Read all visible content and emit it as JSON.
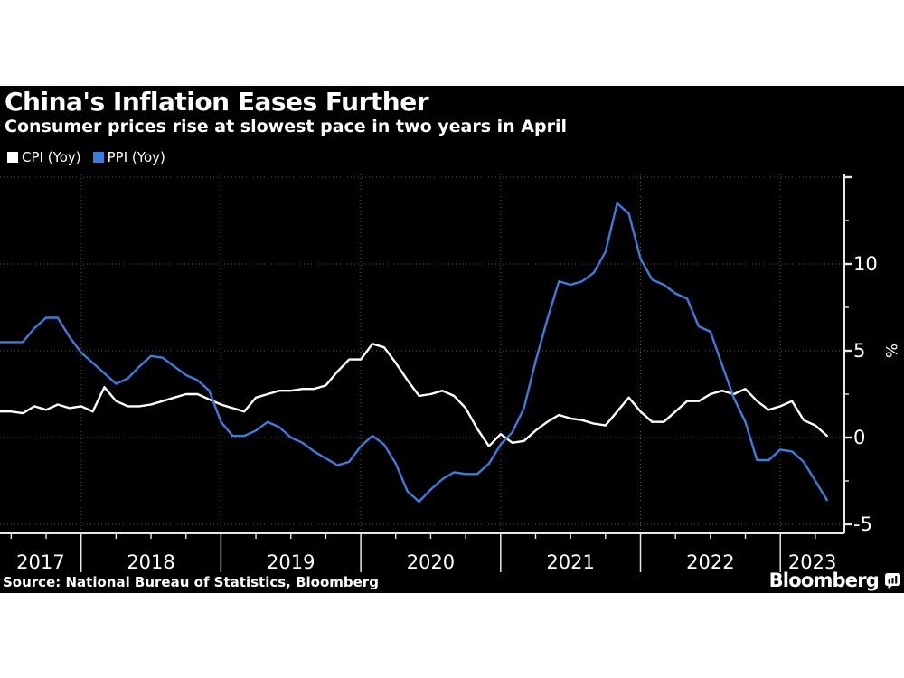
{
  "header": {
    "title": "China's Inflation Eases Further",
    "subtitle": "Consumer prices rise at slowest pace in two years in April"
  },
  "legend": {
    "items": [
      {
        "label": "CPI (Yoy)",
        "color": "#ffffff"
      },
      {
        "label": "PPI (Yoy)",
        "color": "#3a7ddf"
      }
    ]
  },
  "footer": {
    "source": "Source: National Bureau of Statistics, Bloomberg",
    "brand": "Bloomberg"
  },
  "colors": {
    "card_background": "#000000",
    "page_background": "#ffffff",
    "text": "#ffffff",
    "axis": "#e8e8e8",
    "grid": "#5a5a5a",
    "cpi_line": "#ffffff",
    "ppi_line": "#3a7ddf"
  },
  "chart_data": {
    "type": "line",
    "title": "China's Inflation Eases Further",
    "subtitle": "Consumer prices rise at slowest pace in two years in April",
    "unit": "%",
    "frequency": "monthly",
    "start": "2017-05",
    "end": "2023-04",
    "grid": "dotted",
    "legend_position": "top-left",
    "series": [
      {
        "name": "CPI (Yoy)",
        "color": "#ffffff",
        "values": [
          1.5,
          1.5,
          1.4,
          1.8,
          1.6,
          1.9,
          1.7,
          1.8,
          1.5,
          2.9,
          2.1,
          1.8,
          1.8,
          1.9,
          2.1,
          2.3,
          2.5,
          2.5,
          2.2,
          1.9,
          1.7,
          1.5,
          2.3,
          2.5,
          2.7,
          2.7,
          2.8,
          2.8,
          3.0,
          3.8,
          4.5,
          4.5,
          5.4,
          5.2,
          4.3,
          3.3,
          2.4,
          2.5,
          2.7,
          2.4,
          1.7,
          0.5,
          -0.5,
          0.2,
          -0.3,
          -0.2,
          0.4,
          0.9,
          1.3,
          1.1,
          1.0,
          0.8,
          0.7,
          1.5,
          2.3,
          1.5,
          0.9,
          0.9,
          1.5,
          2.1,
          2.1,
          2.5,
          2.7,
          2.5,
          2.8,
          2.1,
          1.6,
          1.8,
          2.1,
          1.0,
          0.7,
          0.1
        ]
      },
      {
        "name": "PPI (Yoy)",
        "color": "#3a7ddf",
        "values": [
          5.5,
          5.5,
          5.5,
          6.3,
          6.9,
          6.9,
          5.8,
          4.9,
          4.3,
          3.7,
          3.1,
          3.4,
          4.1,
          4.7,
          4.6,
          4.1,
          3.6,
          3.3,
          2.7,
          0.9,
          0.1,
          0.1,
          0.4,
          0.9,
          0.6,
          0.0,
          -0.3,
          -0.8,
          -1.2,
          -1.6,
          -1.4,
          -0.5,
          0.1,
          -0.4,
          -1.5,
          -3.1,
          -3.7,
          -3.0,
          -2.4,
          -2.0,
          -2.1,
          -2.1,
          -1.5,
          -0.4,
          0.3,
          1.7,
          4.4,
          6.8,
          9.0,
          8.8,
          9.0,
          9.5,
          10.7,
          13.5,
          12.9,
          10.3,
          9.1,
          8.8,
          8.3,
          8.0,
          6.4,
          6.1,
          4.2,
          2.3,
          0.9,
          -1.3,
          -1.3,
          -0.7,
          -0.8,
          -1.4,
          -2.5,
          -3.6
        ]
      }
    ],
    "x_axis": {
      "tick_labels": [
        "2017",
        "2018",
        "2019",
        "2020",
        "2021",
        "2022",
        "2023"
      ],
      "minor_ticks": "quarterly"
    },
    "y_axis": {
      "unit_label": "%",
      "side": "right",
      "ticks": [
        {
          "value": 10,
          "label": "10"
        },
        {
          "value": 5,
          "label": "5"
        },
        {
          "value": 0,
          "label": "0"
        },
        {
          "value": -5,
          "label": "-5"
        }
      ],
      "gridline_values": [
        15,
        10,
        5,
        0,
        -5
      ],
      "minor_tick_values": [
        12.5,
        7.5,
        2.5,
        -2.5
      ],
      "range": [
        -5.5,
        15.3
      ]
    }
  }
}
